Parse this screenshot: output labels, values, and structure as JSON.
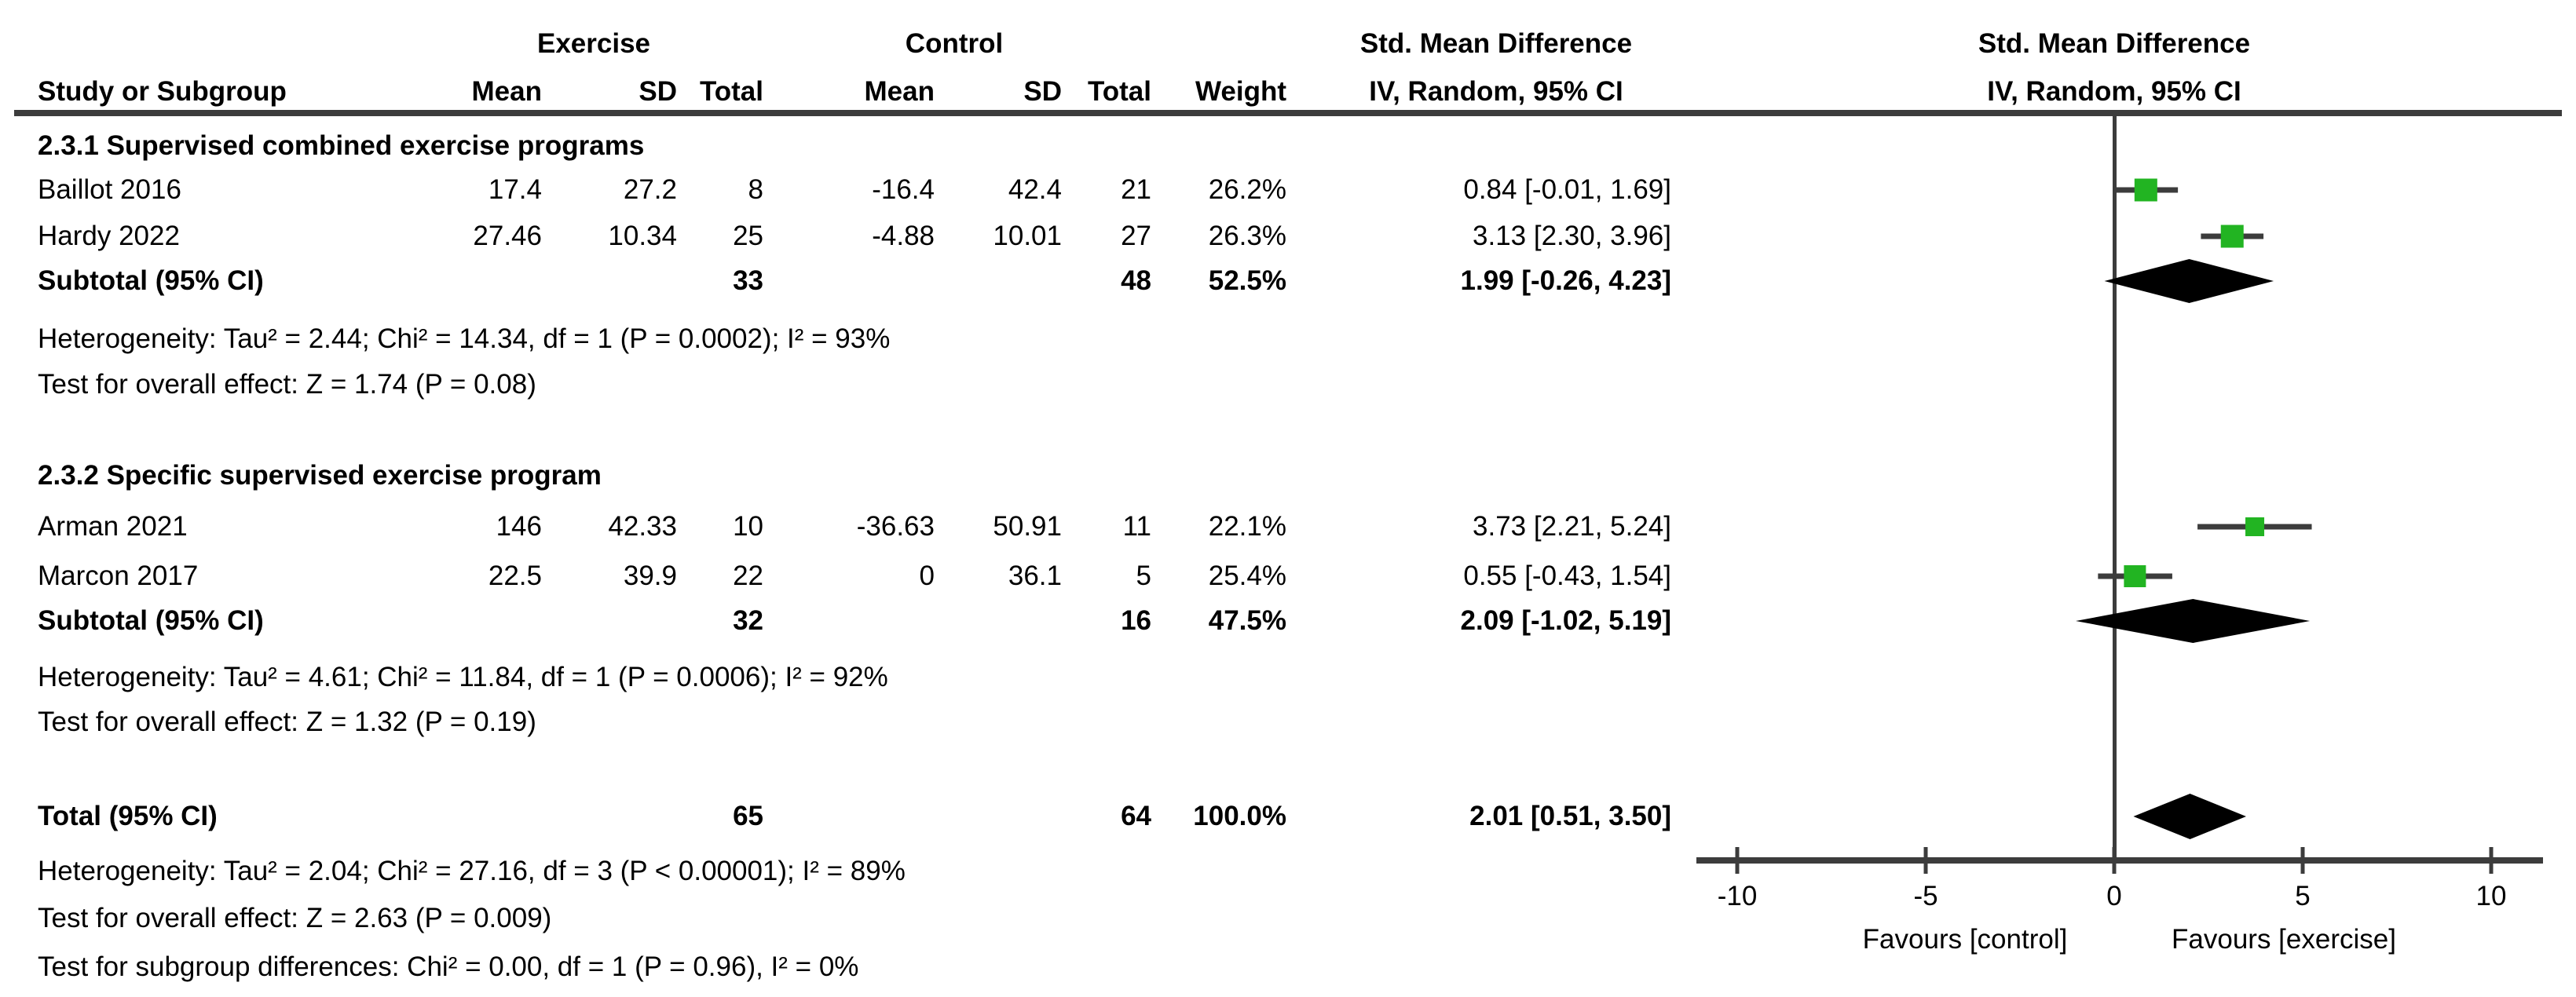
{
  "figure": {
    "columns": {
      "exercise_group": "Exercise",
      "control_group": "Control",
      "study": "Study or Subgroup",
      "mean": "Mean",
      "sd": "SD",
      "total": "Total",
      "weight": "Weight",
      "effect_header_line1": "Std. Mean Difference",
      "effect_header_line2": "IV, Random, 95% CI",
      "plot_header_line1": "Std. Mean Difference",
      "plot_header_line2": "IV, Random, 95% CI"
    },
    "sections": [
      {
        "heading": "2.3.1 Supervised combined exercise programs",
        "studies": [
          {
            "name": "Baillot 2016",
            "mean1": "17.4",
            "sd1": "27.2",
            "total1": "8",
            "mean2": "-16.4",
            "sd2": "42.4",
            "total2": "21",
            "weight": "26.2%",
            "weight_pct": 26.2,
            "ci_text": "0.84 [-0.01, 1.69]",
            "est": 0.84,
            "lo": -0.01,
            "hi": 1.69
          },
          {
            "name": "Hardy 2022",
            "mean1": "27.46",
            "sd1": "10.34",
            "total1": "25",
            "mean2": "-4.88",
            "sd2": "10.01",
            "total2": "27",
            "weight": "26.3%",
            "weight_pct": 26.3,
            "ci_text": "3.13 [2.30, 3.96]",
            "est": 3.13,
            "lo": 2.3,
            "hi": 3.96
          }
        ],
        "subtotal": {
          "label": "Subtotal (95% CI)",
          "total1": "33",
          "total2": "48",
          "weight": "52.5%",
          "ci_text": "1.99 [-0.26, 4.23]",
          "est": 1.99,
          "lo": -0.26,
          "hi": 4.23
        },
        "heterogeneity": "Heterogeneity: Tau² = 2.44; Chi² = 14.34, df = 1 (P = 0.0002); I² = 93%",
        "overall_effect": "Test for overall effect: Z = 1.74 (P = 0.08)"
      },
      {
        "heading": "2.3.2 Specific supervised exercise program",
        "studies": [
          {
            "name": "Arman 2021",
            "mean1": "146",
            "sd1": "42.33",
            "total1": "10",
            "mean2": "-36.63",
            "sd2": "50.91",
            "total2": "11",
            "weight": "22.1%",
            "weight_pct": 22.1,
            "ci_text": "3.73 [2.21, 5.24]",
            "est": 3.73,
            "lo": 2.21,
            "hi": 5.24
          },
          {
            "name": "Marcon 2017",
            "mean1": "22.5",
            "sd1": "39.9",
            "total1": "22",
            "mean2": "0",
            "sd2": "36.1",
            "total2": "5",
            "weight": "25.4%",
            "weight_pct": 25.4,
            "ci_text": "0.55 [-0.43, 1.54]",
            "est": 0.55,
            "lo": -0.43,
            "hi": 1.54
          }
        ],
        "subtotal": {
          "label": "Subtotal (95% CI)",
          "total1": "32",
          "total2": "16",
          "weight": "47.5%",
          "ci_text": "2.09 [-1.02, 5.19]",
          "est": 2.09,
          "lo": -1.02,
          "hi": 5.19
        },
        "heterogeneity": "Heterogeneity: Tau² = 4.61; Chi² = 11.84, df = 1 (P = 0.0006); I² = 92%",
        "overall_effect": "Test for overall effect: Z = 1.32 (P = 0.19)"
      }
    ],
    "total": {
      "label": "Total (95% CI)",
      "total1": "65",
      "total2": "64",
      "weight": "100.0%",
      "ci_text": "2.01 [0.51, 3.50]",
      "est": 2.01,
      "lo": 0.51,
      "hi": 3.5
    },
    "footer": {
      "heterogeneity": "Heterogeneity: Tau² = 2.04; Chi² = 27.16, df = 3 (P < 0.00001); I² = 89%",
      "overall_effect": "Test for overall effect: Z = 2.63 (P = 0.009)",
      "subgroup_differences": "Test for subgroup differences: Chi² = 0.00, df = 1 (P = 0.96), I² = 0%"
    },
    "axis": {
      "tick_labels": [
        "-10",
        "-5",
        "0",
        "5",
        "10"
      ],
      "tick_values": [
        -10,
        -5,
        0,
        5,
        10
      ],
      "favours_left": "Favours [control]",
      "favours_right": "Favours [exercise]"
    },
    "colors": {
      "marker_green": "#22b422",
      "line": "#3c3c3c",
      "diamond": "#000000"
    }
  },
  "chart_data": {
    "type": "forest",
    "title": "Std. Mean Difference",
    "model": "IV, Random, 95% CI",
    "xlim": [
      -11,
      11.4
    ],
    "x_ticks": [
      -10,
      -5,
      0,
      5,
      10
    ],
    "x_left_label": "Favours [control]",
    "x_right_label": "Favours [exercise]",
    "series": [
      {
        "name": "Baillot 2016",
        "subgroup": "2.3.1 Supervised combined exercise programs",
        "marker": "square",
        "est": 0.84,
        "ci": [
          -0.01,
          1.69
        ],
        "weight_pct": 26.2
      },
      {
        "name": "Hardy 2022",
        "subgroup": "2.3.1 Supervised combined exercise programs",
        "marker": "square",
        "est": 3.13,
        "ci": [
          2.3,
          3.96
        ],
        "weight_pct": 26.3
      },
      {
        "name": "Subtotal 2.3.1",
        "marker": "diamond",
        "est": 1.99,
        "ci": [
          -0.26,
          4.23
        ],
        "weight_pct": 52.5
      },
      {
        "name": "Arman 2021",
        "subgroup": "2.3.2 Specific supervised exercise program",
        "marker": "square",
        "est": 3.73,
        "ci": [
          2.21,
          5.24
        ],
        "weight_pct": 22.1
      },
      {
        "name": "Marcon 2017",
        "subgroup": "2.3.2 Specific supervised exercise program",
        "marker": "square",
        "est": 0.55,
        "ci": [
          -0.43,
          1.54
        ],
        "weight_pct": 25.4
      },
      {
        "name": "Subtotal 2.3.2",
        "marker": "diamond",
        "est": 2.09,
        "ci": [
          -1.02,
          5.19
        ],
        "weight_pct": 47.5
      },
      {
        "name": "Total",
        "marker": "diamond",
        "est": 2.01,
        "ci": [
          0.51,
          3.5
        ],
        "weight_pct": 100.0
      }
    ]
  }
}
